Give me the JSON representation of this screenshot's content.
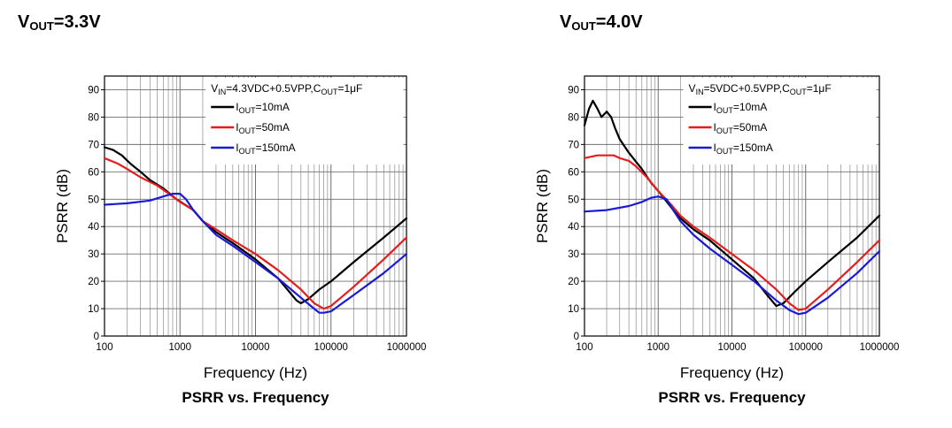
{
  "chart_data": [
    {
      "type": "line",
      "title_main": "V",
      "title_sub": "OUT",
      "title_val": "=3.3V",
      "caption": "PSRR vs. Frequency",
      "xlabel": "Frequency (Hz)",
      "ylabel": "PSRR (dB)",
      "xscale": "log",
      "xlim": [
        100,
        1000000
      ],
      "ylim": [
        0,
        95
      ],
      "xticks": [
        "100",
        "1000",
        "10000",
        "100000",
        "1000000"
      ],
      "yticks": [
        "0",
        "10",
        "20",
        "30",
        "40",
        "50",
        "60",
        "70",
        "80",
        "90"
      ],
      "condition": {
        "v": "V",
        "vsub": "IN",
        "vval": "=4.3VDC+0.5VPP,",
        "c": "C",
        "csub": "OUT",
        "cval": "=1μF"
      },
      "legend_position": "top-right",
      "series": [
        {
          "name_main": "I",
          "name_sub": "OUT",
          "name_val": "=10mA",
          "color": "#000000",
          "x": [
            100,
            130,
            170,
            220,
            300,
            400,
            600,
            900,
            1500,
            2000,
            3000,
            5000,
            10000,
            20000,
            35000,
            40000,
            50000,
            70000,
            100000,
            200000,
            500000,
            1000000
          ],
          "y": [
            69,
            68,
            66,
            63,
            60,
            57,
            54,
            50,
            46,
            42,
            38,
            34,
            28,
            21,
            13,
            12,
            13.5,
            17,
            20,
            27,
            36,
            43
          ]
        },
        {
          "name_main": "I",
          "name_sub": "OUT",
          "name_val": "=50mA",
          "color": "#e31e1e",
          "x": [
            100,
            150,
            200,
            300,
            500,
            800,
            1000,
            1500,
            2000,
            3000,
            5000,
            10000,
            20000,
            40000,
            60000,
            80000,
            100000,
            200000,
            500000,
            1000000
          ],
          "y": [
            65,
            63,
            61,
            58,
            55,
            51,
            49,
            46,
            42,
            39,
            35,
            30,
            24,
            17,
            12,
            10,
            11,
            18,
            28,
            36
          ]
        },
        {
          "name_main": "I",
          "name_sub": "OUT",
          "name_val": "=150mA",
          "color": "#1a1ad6",
          "x": [
            100,
            200,
            400,
            600,
            800,
            1000,
            1200,
            1500,
            2000,
            3000,
            5000,
            10000,
            20000,
            40000,
            60000,
            70000,
            80000,
            100000,
            200000,
            500000,
            1000000
          ],
          "y": [
            48,
            48.5,
            49.5,
            51,
            52,
            52,
            50,
            46,
            42,
            37,
            33,
            27,
            21,
            14,
            10,
            8.5,
            8.5,
            9,
            15,
            23,
            30
          ]
        }
      ]
    },
    {
      "type": "line",
      "title_main": "V",
      "title_sub": "OUT",
      "title_val": "=4.0V",
      "caption": "PSRR vs. Frequency",
      "xlabel": "Frequency (Hz)",
      "ylabel": "PSRR (dB)",
      "xscale": "log",
      "xlim": [
        100,
        1000000
      ],
      "ylim": [
        0,
        95
      ],
      "xticks": [
        "100",
        "1000",
        "10000",
        "100000",
        "1000000"
      ],
      "yticks": [
        "0",
        "10",
        "20",
        "30",
        "40",
        "50",
        "60",
        "70",
        "80",
        "90"
      ],
      "condition": {
        "v": "V",
        "vsub": "IN",
        "vval": "=5VDC+0.5VPP,",
        "c": "C",
        "csub": "OUT",
        "cval": "=1μF"
      },
      "legend_position": "top-right",
      "series": [
        {
          "name_main": "I",
          "name_sub": "OUT",
          "name_val": "=10mA",
          "color": "#000000",
          "x": [
            100,
            115,
            130,
            150,
            170,
            200,
            230,
            260,
            300,
            400,
            600,
            800,
            1000,
            1500,
            2000,
            3000,
            5000,
            10000,
            20000,
            30000,
            40000,
            50000,
            70000,
            100000,
            200000,
            500000,
            1000000
          ],
          "y": [
            77,
            83,
            86,
            83,
            80,
            82,
            80,
            76,
            72,
            67,
            61,
            56,
            53,
            47,
            43,
            39,
            35,
            28,
            21,
            15,
            11,
            12,
            16,
            20,
            27,
            36,
            44
          ]
        },
        {
          "name_main": "I",
          "name_sub": "OUT",
          "name_val": "=50mA",
          "color": "#e31e1e",
          "x": [
            100,
            150,
            200,
            250,
            300,
            400,
            500,
            700,
            1000,
            1500,
            2000,
            3000,
            5000,
            10000,
            20000,
            40000,
            60000,
            80000,
            100000,
            200000,
            500000,
            1000000
          ],
          "y": [
            65,
            66,
            66,
            66,
            65,
            64,
            62,
            58,
            53,
            48,
            44,
            40,
            36,
            30,
            24,
            17,
            12,
            9.5,
            10,
            17,
            27,
            35
          ]
        },
        {
          "name_main": "I",
          "name_sub": "OUT",
          "name_val": "=150mA",
          "color": "#1a1ad6",
          "x": [
            100,
            200,
            400,
            600,
            800,
            1000,
            1300,
            1600,
            2000,
            3000,
            5000,
            10000,
            20000,
            40000,
            60000,
            80000,
            100000,
            200000,
            500000,
            1000000
          ],
          "y": [
            45.5,
            46,
            47.5,
            49,
            50.5,
            51,
            50,
            46,
            42,
            37,
            32,
            26,
            20,
            13,
            9.5,
            8,
            8.5,
            14,
            23,
            31
          ]
        }
      ]
    }
  ]
}
